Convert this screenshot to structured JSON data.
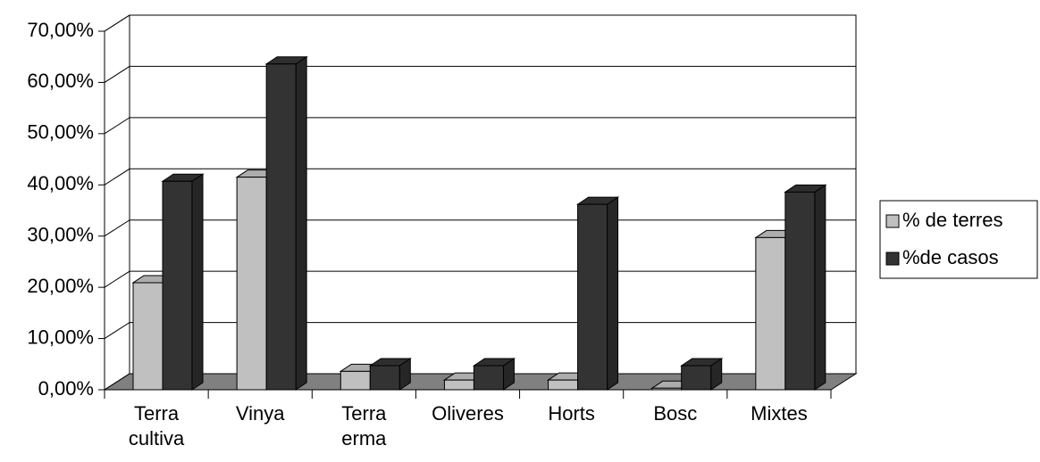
{
  "chart_data": {
    "type": "bar3d",
    "categories": [
      "Terra cultiva",
      "Vinya",
      "Terra erma",
      "Oliveres",
      "Horts",
      "Bosc",
      "Mixtes"
    ],
    "series": [
      {
        "name": "% de terres",
        "color": "#c0c0c0",
        "values": [
          20.9,
          41.5,
          3.6,
          1.9,
          1.9,
          0.3,
          29.7
        ]
      },
      {
        "name": "%de casos",
        "color": "#333333",
        "values": [
          40.7,
          63.6,
          4.7,
          4.7,
          36.2,
          4.7,
          38.6
        ]
      }
    ],
    "ylim": [
      0,
      70
    ],
    "yticks": [
      {
        "value": 0,
        "label": "0,00%"
      },
      {
        "value": 10,
        "label": "10,00%"
      },
      {
        "value": 20,
        "label": "20,00%"
      },
      {
        "value": 30,
        "label": "30,00%"
      },
      {
        "value": 40,
        "label": "40,00%"
      },
      {
        "value": 50,
        "label": "50,00%"
      },
      {
        "value": 60,
        "label": "60,00%"
      },
      {
        "value": 70,
        "label": "70,00%"
      }
    ],
    "grid": true,
    "floor_color": "#808080",
    "legend": "right"
  }
}
